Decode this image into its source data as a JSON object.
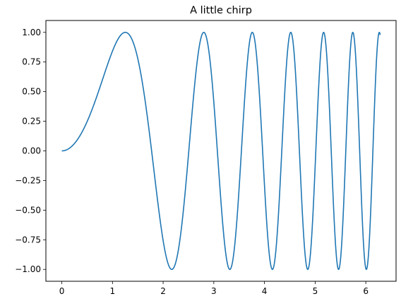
{
  "chart_data": {
    "type": "line",
    "title": "A little chirp",
    "xlabel": "",
    "ylabel": "",
    "function": "sin(x^2)",
    "xlim": [
      -0.314,
      6.597
    ],
    "ylim": [
      -1.1,
      1.1
    ],
    "x_range": [
      0,
      6.2832
    ],
    "x_ticks": [
      0,
      1,
      2,
      3,
      4,
      5,
      6
    ],
    "x_tick_labels": [
      "0",
      "1",
      "2",
      "3",
      "4",
      "5",
      "6"
    ],
    "y_ticks": [
      -1.0,
      -0.75,
      -0.5,
      -0.25,
      0.0,
      0.25,
      0.5,
      0.75,
      1.0
    ],
    "y_tick_labels": [
      "−1.00",
      "−0.75",
      "−0.50",
      "−0.25",
      "0.00",
      "0.25",
      "0.50",
      "0.75",
      "1.00"
    ],
    "grid": false,
    "legend": false,
    "series": [
      {
        "color": "#1f77b4"
      }
    ]
  }
}
